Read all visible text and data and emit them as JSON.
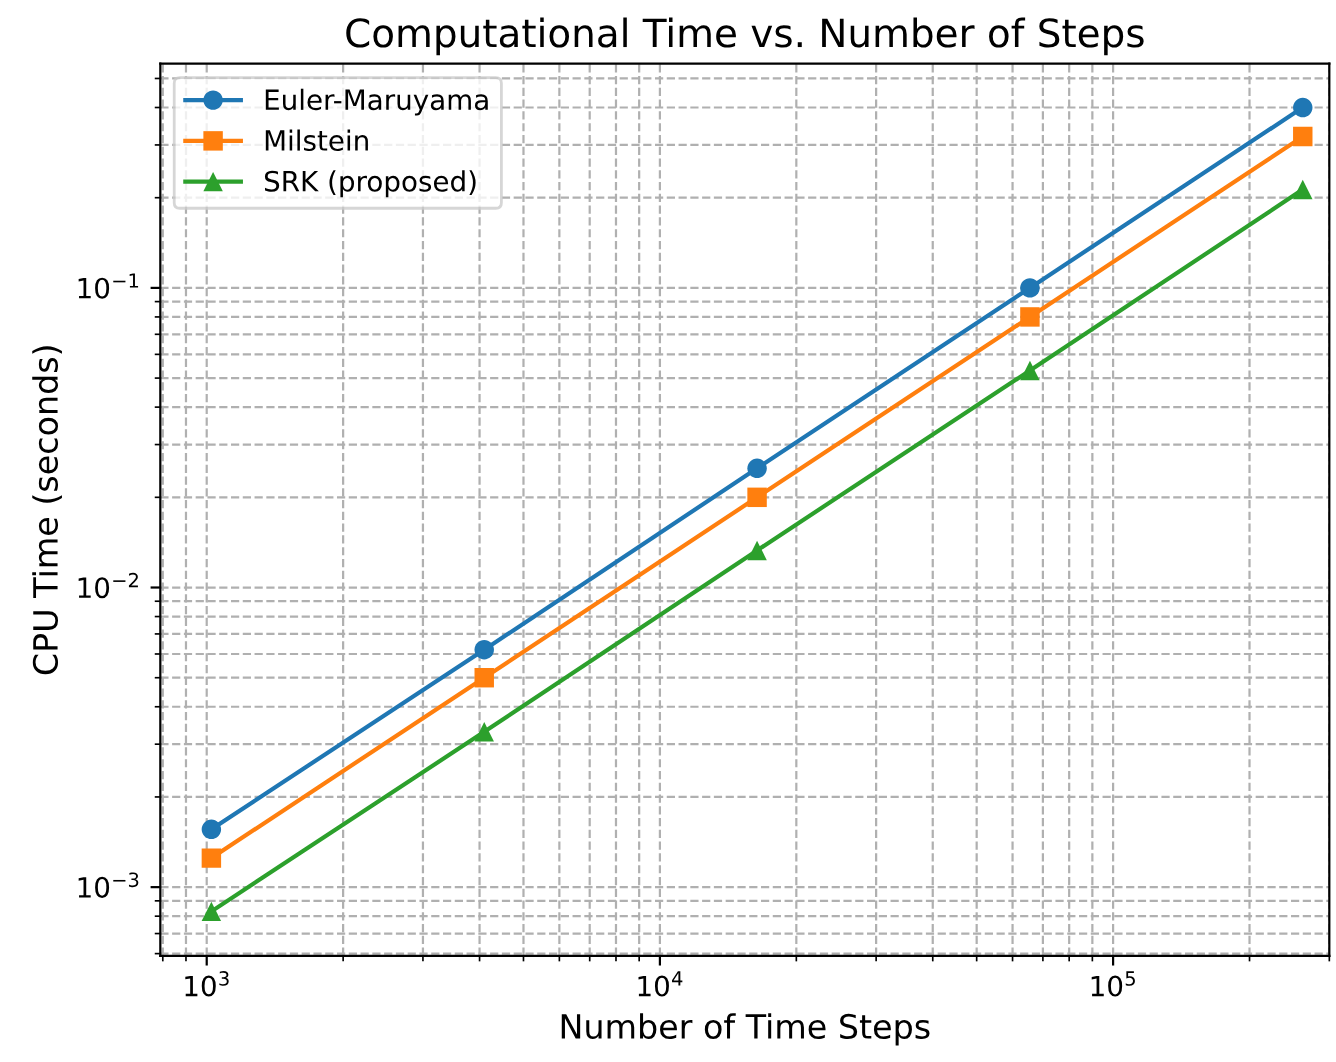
{
  "chart_data": {
    "type": "line",
    "title": "Computational Time vs. Number of Steps",
    "xlabel": "Number of Time Steps",
    "ylabel": "CPU Time (seconds)",
    "x": [
      1024,
      4096,
      16384,
      65536,
      262144
    ],
    "series": [
      {
        "name": "Euler-Maruyama",
        "color": "#1f77b4",
        "marker": "circle",
        "values": [
          0.00156,
          0.0062,
          0.025,
          0.1,
          0.4
        ]
      },
      {
        "name": "Milstein",
        "color": "#ff7f0e",
        "marker": "square",
        "values": [
          0.00125,
          0.005,
          0.02,
          0.08,
          0.32
        ]
      },
      {
        "name": "SRK (proposed)",
        "color": "#2ca02c",
        "marker": "triangle",
        "values": [
          0.00083,
          0.0033,
          0.0133,
          0.053,
          0.213
        ]
      }
    ],
    "log": "xy",
    "xlim": [
      790,
      300000
    ],
    "ylim": [
      0.00059,
      0.56
    ],
    "xticks": [
      {
        "value": 1000,
        "label": "10$^{3}$"
      },
      {
        "value": 10000,
        "label": "10$^{4}$"
      },
      {
        "value": 100000,
        "label": "10$^{5}$"
      }
    ],
    "yticks": [
      {
        "value": 0.001,
        "label": "10$^{−3}$"
      },
      {
        "value": 0.01,
        "label": "10$^{−2}$"
      },
      {
        "value": 0.1,
        "label": "10$^{−1}$"
      }
    ],
    "grid": true,
    "legend": "top left",
    "line_style": "solid"
  }
}
